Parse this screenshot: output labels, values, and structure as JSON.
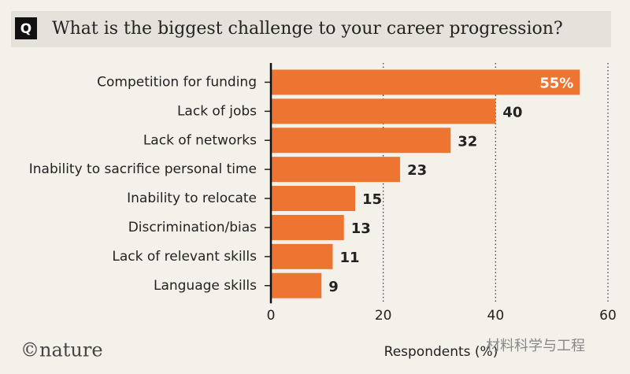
{
  "chart_data": {
    "type": "bar",
    "orientation": "horizontal",
    "title_marker": "Q",
    "title": "What is the biggest challenge to your career progression?",
    "categories": [
      "Competition for funding",
      "Lack of jobs",
      "Lack of networks",
      "Inability to sacrifice personal time",
      "Inability to relocate",
      "Discrimination/bias",
      "Lack of relevant skills",
      "Language skills"
    ],
    "values": [
      55,
      40,
      32,
      23,
      15,
      13,
      11,
      9
    ],
    "value_labels": [
      "55%",
      "40",
      "32",
      "23",
      "15",
      "13",
      "11",
      "9"
    ],
    "color": "#ee7431",
    "xlim": [
      0,
      60
    ],
    "xticks": [
      0,
      20,
      40,
      60
    ],
    "xlabel": "Respondents (%)",
    "grid": true
  },
  "footer": {
    "credit": "©nature",
    "watermark": "材料科学与工程"
  }
}
